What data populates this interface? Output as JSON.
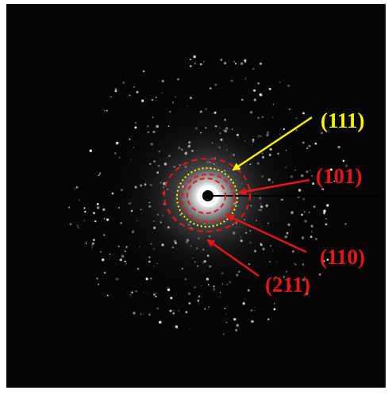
{
  "annotations": [
    {
      "label": "(111)"
    },
    {
      "label": "(101)"
    },
    {
      "label": "(110)"
    },
    {
      "label": "(211)"
    }
  ]
}
